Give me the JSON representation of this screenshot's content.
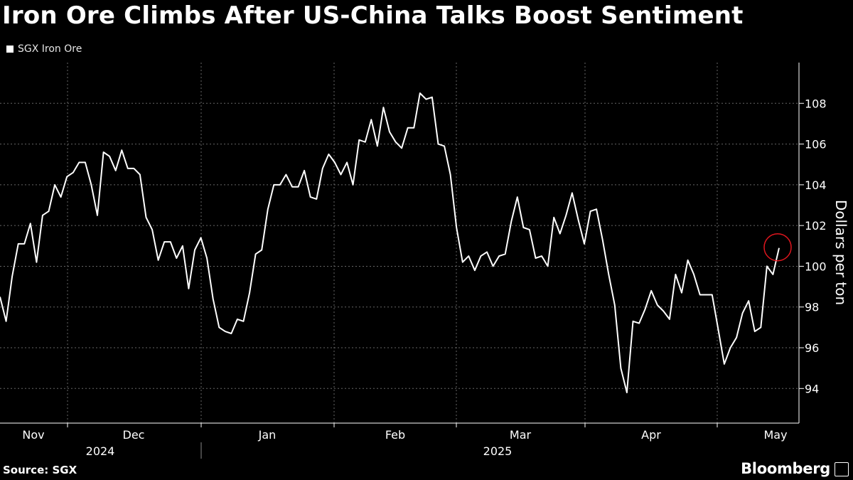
{
  "title": "Iron Ore Climbs After US-China Talks Boost Sentiment",
  "source": "Source: SGX",
  "brand": "Bloomberg",
  "colors": {
    "background": "#000000",
    "line": "#ffffff",
    "grid": "#666666",
    "highlight": "#e0161e"
  },
  "chart_data": {
    "type": "line",
    "series": [
      {
        "name": "SGX Iron Ore",
        "values": [
          98.5,
          97.3,
          99.5,
          101.1,
          101.1,
          102.1,
          100.2,
          102.5,
          102.7,
          104.0,
          103.4,
          104.4,
          104.6,
          105.1,
          105.1,
          104.0,
          102.5,
          105.6,
          105.4,
          104.7,
          105.7,
          104.8,
          104.8,
          104.5,
          102.4,
          101.8,
          100.3,
          101.2,
          101.2,
          100.4,
          101.0,
          98.9,
          100.8,
          101.4,
          100.4,
          98.4,
          97.0,
          96.8,
          96.7,
          97.4,
          97.3,
          98.7,
          100.6,
          100.8,
          102.8,
          104.0,
          104.0,
          104.5,
          103.9,
          103.9,
          104.7,
          103.4,
          103.3,
          104.8,
          105.5,
          105.1,
          104.5,
          105.1,
          104.0,
          106.2,
          106.1,
          107.2,
          105.9,
          107.8,
          106.6,
          106.1,
          105.8,
          106.8,
          106.8,
          108.5,
          108.2,
          108.3,
          106.0,
          105.9,
          104.5,
          101.9,
          100.2,
          100.5,
          99.8,
          100.5,
          100.7,
          100.0,
          100.5,
          100.6,
          102.2,
          103.4,
          101.9,
          101.8,
          100.4,
          100.5,
          100.0,
          102.4,
          101.6,
          102.5,
          103.6,
          102.3,
          101.1,
          102.7,
          102.8,
          101.3,
          99.6,
          98.1,
          95.0,
          93.8,
          97.3,
          97.2,
          97.9,
          98.8,
          98.1,
          97.8,
          97.4,
          99.6,
          98.7,
          100.3,
          99.6,
          98.6,
          98.6,
          98.6,
          96.9,
          95.2,
          96.0,
          96.5,
          97.7,
          98.3,
          96.8,
          97.0,
          100.0,
          99.6,
          100.9
        ]
      }
    ],
    "months": [
      "Nov",
      "Dec",
      "Jan",
      "Feb",
      "Mar",
      "Apr",
      "May"
    ],
    "years": [
      "2024",
      "2025"
    ],
    "y_ticks": [
      94,
      96,
      98,
      100,
      102,
      104,
      106,
      108
    ],
    "ylim": [
      92.3,
      110
    ],
    "ylabel": "Dollars per ton",
    "grid": true,
    "highlight_last_point": true
  }
}
